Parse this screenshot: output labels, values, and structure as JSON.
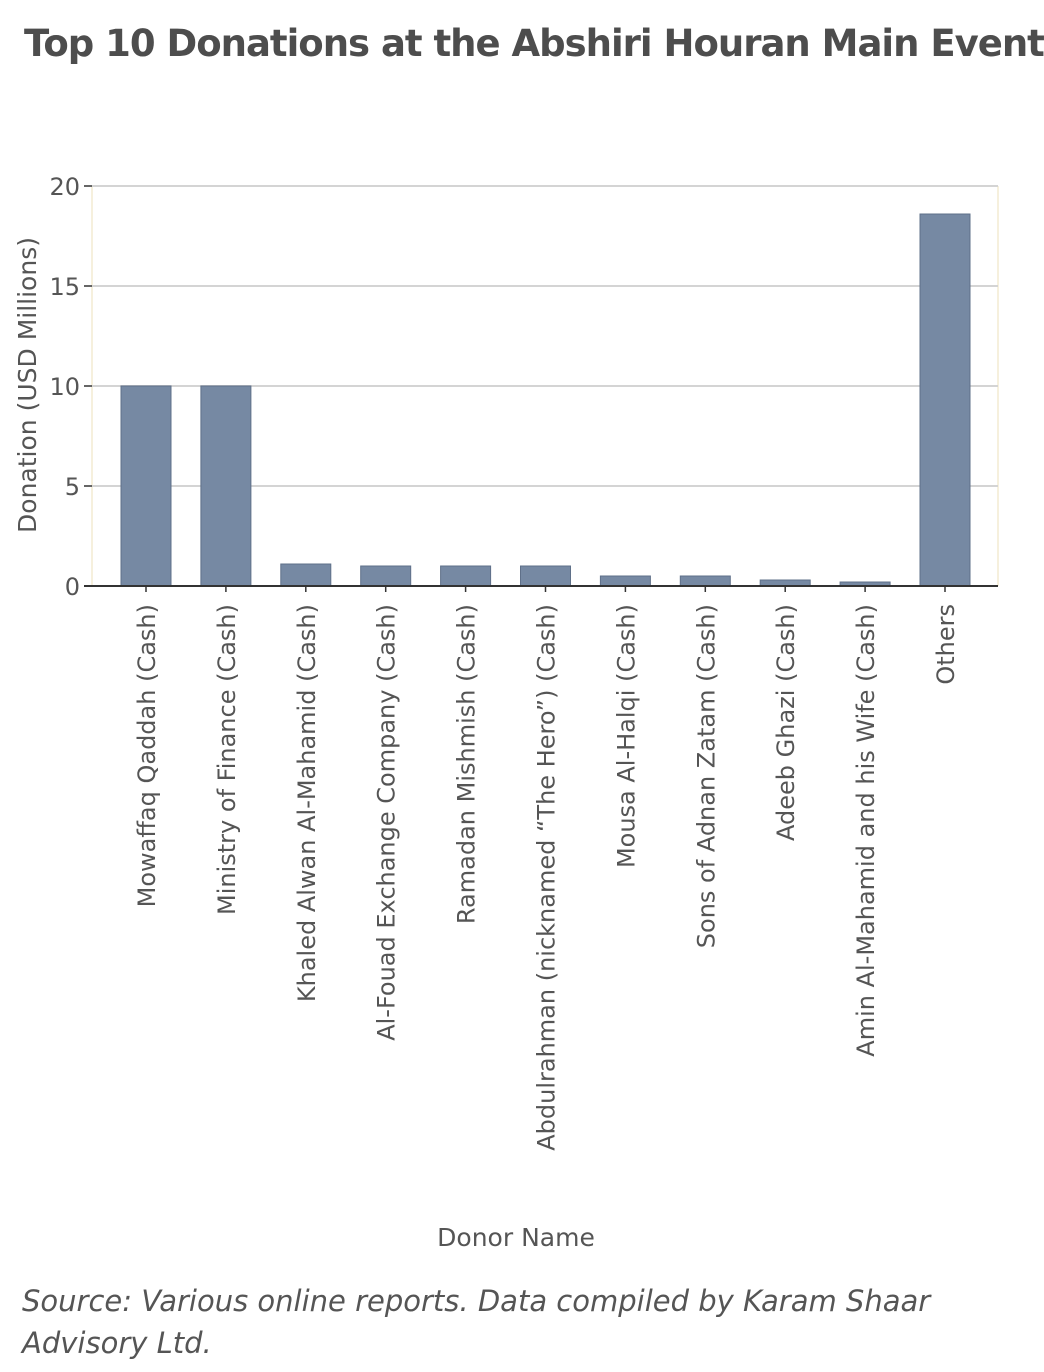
{
  "title": "Top 10 Donations at the Abshiri Houran Main Event",
  "source_note": "Source: Various online reports. Data compiled by Karam Shaar Advisory Ltd.",
  "colors": {
    "bar": "#7689a3",
    "grid": "#d4d4d4",
    "axis": "#333333",
    "text": "#555555",
    "frame": "#f3ecd2"
  },
  "chart_data": {
    "type": "bar",
    "title": "Top 10 Donations at the Abshiri Houran Main Event",
    "xlabel": "Donor Name",
    "ylabel": "Donation (USD Millions)",
    "ylim": [
      0,
      20
    ],
    "yticks": [
      0,
      5,
      10,
      15,
      20
    ],
    "grid": true,
    "categories": [
      "Mowaffaq Qaddah (Cash)",
      "Ministry of Finance (Cash)",
      "Khaled Alwan Al-Mahamid (Cash)",
      "Al-Fouad Exchange Company (Cash)",
      "Ramadan Mishmish (Cash)",
      "Abdulrahman (nicknamed “The Hero”) (Cash)",
      "Mousa Al-Halqi (Cash)",
      "Sons of Adnan Zatam (Cash)",
      "Adeeb Ghazi (Cash)",
      "Amin Al-Mahamid and his Wife (Cash)",
      "Others"
    ],
    "values": [
      10,
      10,
      1.1,
      1.0,
      1.0,
      1.0,
      0.5,
      0.5,
      0.3,
      0.2,
      18.6
    ]
  }
}
